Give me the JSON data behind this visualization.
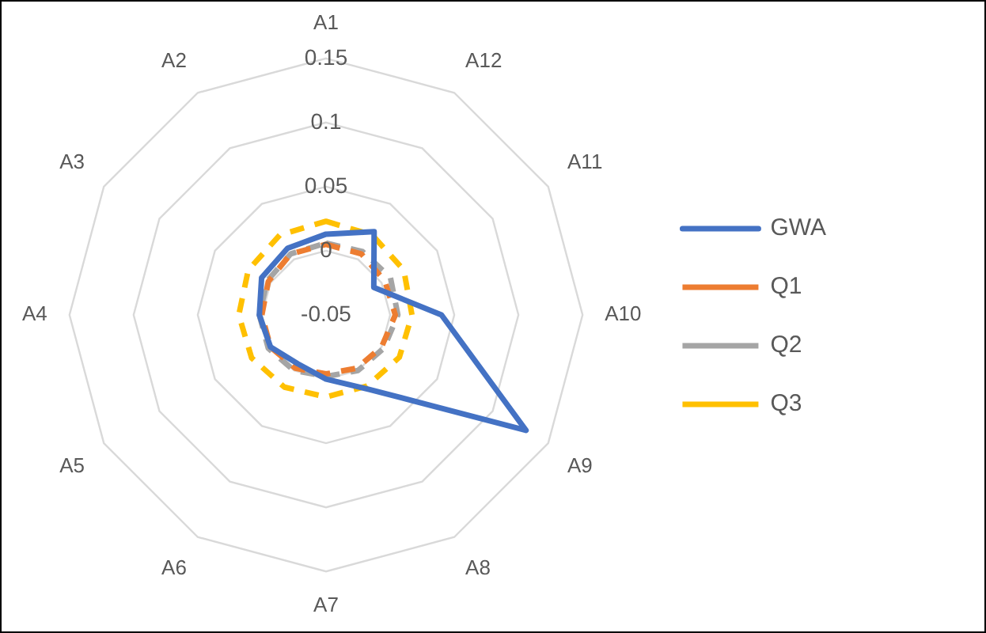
{
  "chart_data": {
    "type": "radar",
    "categories": [
      "A1",
      "A12",
      "A11",
      "A10",
      "A9",
      "A8",
      "A7",
      "A6",
      "A5",
      "A4",
      "A3",
      "A2"
    ],
    "series": [
      {
        "name": "GWA",
        "color": "#4472c4",
        "line_style": "solid",
        "values": [
          0.013,
          0.025,
          -0.007,
          0.04,
          0.13,
          0.017,
          0.0,
          -0.006,
          0.0,
          0.002,
          0.008,
          0.01
        ]
      },
      {
        "name": "Q1",
        "color": "#ed7d31",
        "line_style": "dashed",
        "values": [
          0.005,
          0.005,
          0.003,
          0.004,
          0.0,
          -0.002,
          -0.004,
          -0.002,
          0.0,
          0.0,
          0.002,
          0.005
        ]
      },
      {
        "name": "Q2",
        "color": "#a5a5a5",
        "line_style": "dashed",
        "values": [
          0.006,
          0.007,
          0.008,
          0.006,
          0.002,
          0.0,
          -0.002,
          0.0,
          0.002,
          0.002,
          0.003,
          0.005
        ]
      },
      {
        "name": "Q3",
        "color": "#ffc000",
        "line_style": "dashed",
        "values": [
          0.023,
          0.022,
          0.02,
          0.017,
          0.016,
          0.014,
          0.014,
          0.015,
          0.017,
          0.018,
          0.02,
          0.022
        ]
      }
    ],
    "ylim": [
      -0.05,
      0.15
    ],
    "yticks": [
      -0.05,
      0,
      0.05,
      0.1,
      0.15
    ],
    "grid": true,
    "legend": "right",
    "marker": "none"
  }
}
